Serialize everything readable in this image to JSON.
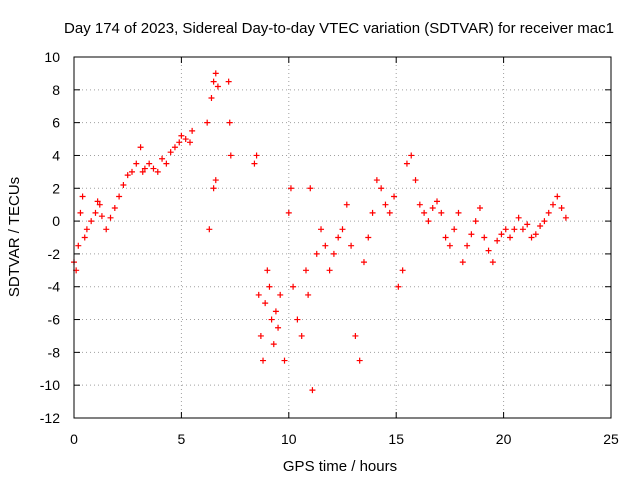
{
  "chart_data": {
    "type": "scatter",
    "title": "Day 174 of 2023, Sidereal Day-to-day VTEC variation (SDTVAR) for receiver mac1",
    "xlabel": "GPS time / hours",
    "ylabel": "SDTVAR / TECUs",
    "xlim": [
      0,
      25
    ],
    "ylim": [
      -12,
      10
    ],
    "xticks": [
      0,
      5,
      10,
      15,
      20,
      25
    ],
    "yticks": [
      -12,
      -10,
      -8,
      -6,
      -4,
      -2,
      0,
      2,
      4,
      6,
      8,
      10
    ],
    "grid": true,
    "marker": "+",
    "color": "#ff0000",
    "series": [
      {
        "name": "mac1",
        "x": [
          0.0,
          0.1,
          0.2,
          0.3,
          0.4,
          0.5,
          0.6,
          0.8,
          1.0,
          1.1,
          1.2,
          1.3,
          1.5,
          1.7,
          1.9,
          2.1,
          2.3,
          2.5,
          2.7,
          2.9,
          3.1,
          3.2,
          3.3,
          3.5,
          3.7,
          3.9,
          4.1,
          4.3,
          4.5,
          4.7,
          4.9,
          5.0,
          5.2,
          5.4,
          5.5,
          6.2,
          6.4,
          6.5,
          6.6,
          6.7,
          6.3,
          6.5,
          6.6,
          7.2,
          7.25,
          7.3,
          8.4,
          8.5,
          8.6,
          8.7,
          8.8,
          8.9,
          9.0,
          9.1,
          9.2,
          9.3,
          9.4,
          9.5,
          9.6,
          9.8,
          10.0,
          10.1,
          10.2,
          10.4,
          10.6,
          10.8,
          10.9,
          11.0,
          11.1,
          11.3,
          11.5,
          11.7,
          11.9,
          12.1,
          12.3,
          12.5,
          12.7,
          12.9,
          13.1,
          13.3,
          13.5,
          13.7,
          13.9,
          14.1,
          14.3,
          14.5,
          14.7,
          14.9,
          15.1,
          15.3,
          15.5,
          15.7,
          15.9,
          16.1,
          16.3,
          16.5,
          16.7,
          16.9,
          17.1,
          17.3,
          17.5,
          17.7,
          17.9,
          18.1,
          18.3,
          18.5,
          18.7,
          18.9,
          19.1,
          19.3,
          19.5,
          19.7,
          19.9,
          20.1,
          20.3,
          20.5,
          20.7,
          20.9,
          21.1,
          21.3,
          21.5,
          21.7,
          21.9,
          22.1,
          22.3,
          22.5,
          22.7,
          22.9
        ],
        "y": [
          -2.5,
          -3.0,
          -1.5,
          0.5,
          1.5,
          -1.0,
          -0.5,
          0.0,
          0.5,
          1.2,
          1.0,
          0.3,
          -0.5,
          0.2,
          0.8,
          1.5,
          2.2,
          2.8,
          3.0,
          3.5,
          4.5,
          3.0,
          3.2,
          3.5,
          3.2,
          3.0,
          3.8,
          3.5,
          4.2,
          4.5,
          4.8,
          5.2,
          5.0,
          4.8,
          5.5,
          6.0,
          7.5,
          8.5,
          9.0,
          8.2,
          -0.5,
          2.0,
          2.5,
          8.5,
          6.0,
          4.0,
          3.5,
          4.0,
          -4.5,
          -7.0,
          -8.5,
          -5.0,
          -3.0,
          -4.0,
          -6.0,
          -7.5,
          -5.5,
          -6.5,
          -4.5,
          -8.5,
          0.5,
          2.0,
          -4.0,
          -6.0,
          -7.0,
          -3.0,
          -4.5,
          2.0,
          -10.3,
          -2.0,
          -0.5,
          -1.5,
          -3.0,
          -2.0,
          -1.0,
          -0.5,
          1.0,
          -1.5,
          -7.0,
          -8.5,
          -2.5,
          -1.0,
          0.5,
          2.5,
          2.0,
          1.0,
          0.5,
          1.5,
          -4.0,
          -3.0,
          3.5,
          4.0,
          2.5,
          1.0,
          0.5,
          0.0,
          0.8,
          1.2,
          0.5,
          -1.0,
          -1.5,
          -0.5,
          0.5,
          -2.5,
          -1.5,
          -0.8,
          0.0,
          0.8,
          -1.0,
          -1.8,
          -2.5,
          -1.2,
          -0.8,
          -0.5,
          -1.0,
          -0.5,
          0.2,
          -0.5,
          -0.2,
          -1.0,
          -0.8,
          -0.3,
          0.0,
          0.5,
          1.0,
          1.5,
          0.8,
          0.2
        ]
      }
    ]
  }
}
